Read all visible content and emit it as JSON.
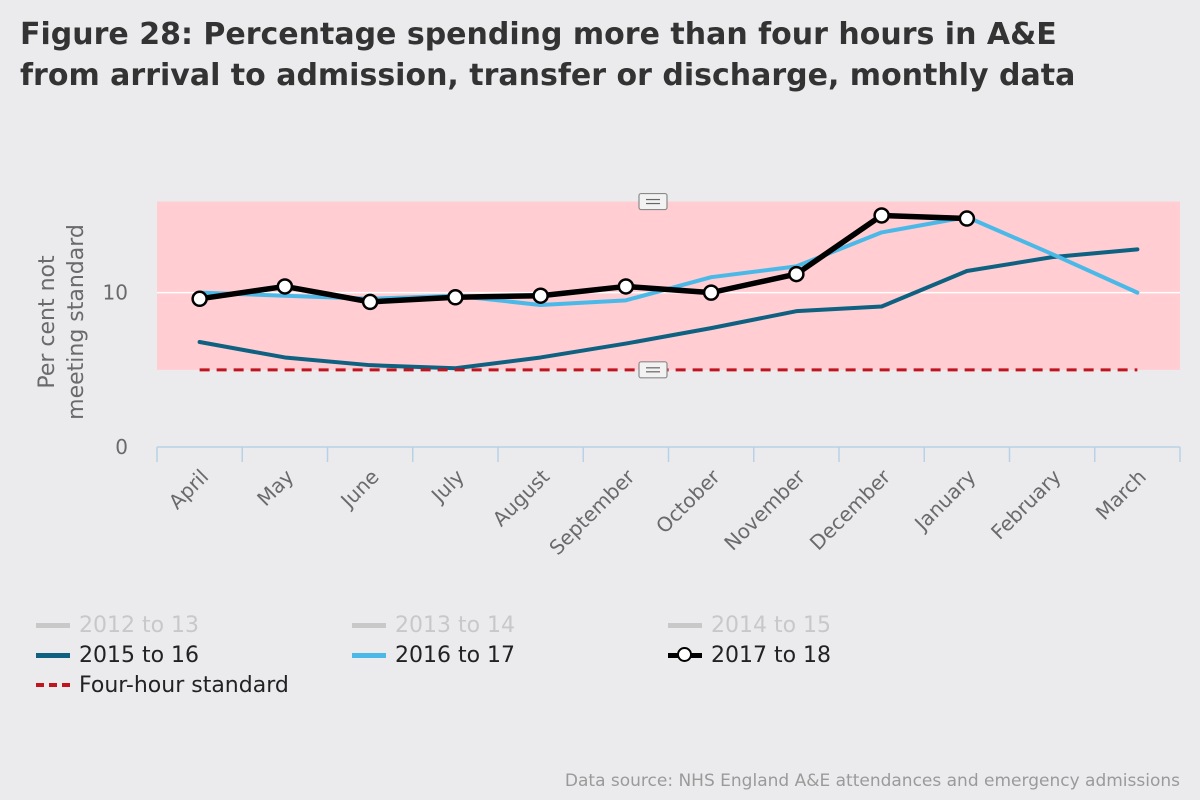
{
  "title": "Figure 28: Percentage spending more than four hours in A&E from arrival to admission, transfer or discharge, monthly data",
  "source": "Data source: NHS England A&E attendances and emergency admissions",
  "colors": {
    "band": "#ffcdd2",
    "s2015": "#0e6181",
    "s2016": "#4ab9e8",
    "s2017": "#000000",
    "standard": "#c0141f",
    "disabled": "#c8c8c8",
    "axis": "#b8d1e6"
  },
  "legend": {
    "items": [
      {
        "label": "2012 to 13",
        "key": "s2012",
        "enabled": false
      },
      {
        "label": "2013 to 14",
        "key": "s2013",
        "enabled": false
      },
      {
        "label": "2014 to 15",
        "key": "s2014",
        "enabled": false
      },
      {
        "label": "2015 to 16",
        "key": "s2015",
        "enabled": true
      },
      {
        "label": "2016 to 17",
        "key": "s2016",
        "enabled": true
      },
      {
        "label": "2017 to 18",
        "key": "s2017",
        "enabled": true
      },
      {
        "label": "Four-hour standard",
        "key": "standard",
        "enabled": true
      }
    ]
  },
  "chart_data": {
    "type": "line",
    "title": "Figure 28: Percentage spending more than four hours in A&E from arrival to admission, transfer or discharge, monthly data",
    "ylabel": "Per cent not meeting standard",
    "xlabel": "",
    "categories": [
      "April",
      "May",
      "June",
      "July",
      "August",
      "September",
      "October",
      "November",
      "December",
      "January",
      "February",
      "March"
    ],
    "ylim": [
      0,
      16
    ],
    "yticks": [
      0,
      10
    ],
    "band": [
      5,
      15.9
    ],
    "series": [
      {
        "name": "2015 to 16",
        "key": "s2015",
        "markers": false,
        "values": [
          6.8,
          5.8,
          5.3,
          5.1,
          5.8,
          6.7,
          7.7,
          8.8,
          9.1,
          11.4,
          12.3,
          12.8
        ]
      },
      {
        "name": "2016 to 17",
        "key": "s2016",
        "markers": false,
        "values": [
          10.0,
          9.8,
          9.6,
          9.8,
          9.2,
          9.5,
          11.0,
          11.7,
          13.9,
          14.9,
          12.5,
          10.0
        ]
      },
      {
        "name": "2017 to 18",
        "key": "s2017",
        "markers": true,
        "values": [
          9.6,
          10.4,
          9.4,
          9.7,
          9.8,
          10.4,
          10.0,
          11.2,
          15.0,
          14.8,
          null,
          null
        ]
      },
      {
        "name": "Four-hour standard",
        "key": "standard",
        "dashed": true,
        "values": [
          5,
          5,
          5,
          5,
          5,
          5,
          5,
          5,
          5,
          5,
          5,
          5
        ]
      }
    ]
  }
}
